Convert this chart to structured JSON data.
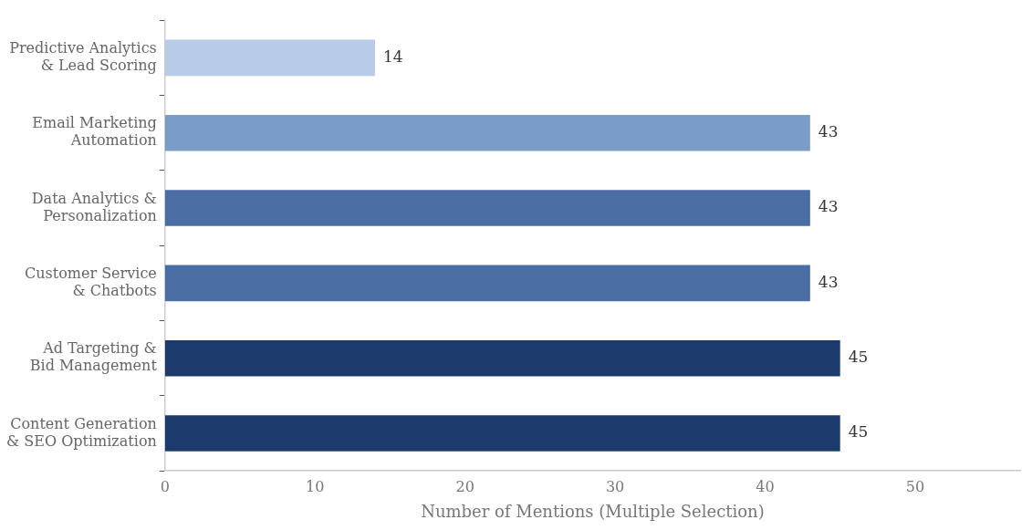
{
  "chart_data": {
    "type": "bar",
    "orientation": "horizontal",
    "xlabel": "Number of Mentions (Multiple Selection)",
    "categories": [
      "Predictive Analytics\n& Lead Scoring",
      "Email Marketing\nAutomation",
      "Data Analytics &\nPersonalization",
      "Customer Service\n& Chatbots",
      "Ad Targeting &\nBid Management",
      "Content Generation\n& SEO Optimization"
    ],
    "values": [
      14,
      43,
      43,
      43,
      45,
      45
    ],
    "colors": [
      "#b8cce8",
      "#7a9dc8",
      "#4a6ea3",
      "#4a6ea3",
      "#1c3a6b",
      "#1c3a6b"
    ],
    "xlim": [
      0,
      57
    ],
    "xticks": [
      0,
      10,
      20,
      30,
      40,
      50
    ],
    "grid": false,
    "legend": false,
    "data_labels": true
  }
}
